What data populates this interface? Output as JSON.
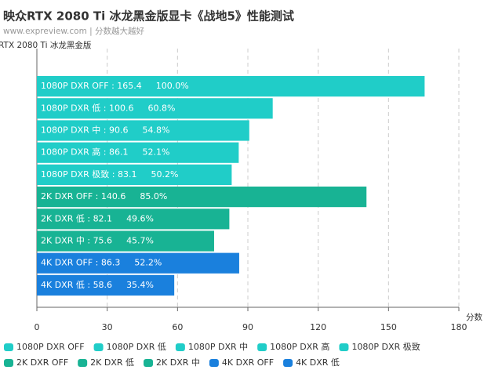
{
  "chart_data": {
    "type": "bar",
    "orientation": "horizontal",
    "title": "映众RTX 2080 Ti 冰龙黑金版显卡《战地5》性能测试",
    "subtitle": "www.expreview.com | 分数越大越好",
    "series_name": "RTX 2080 Ti 冰龙黑金版",
    "x_label": "分数",
    "label_separator": " : ",
    "categories": [
      "1080P DXR OFF",
      "1080P DXR 低",
      "1080P DXR 中",
      "1080P DXR 高",
      "1080P DXR 极致",
      "2K DXR OFF",
      "2K DXR 低",
      "2K DXR 中",
      "4K DXR OFF",
      "4K DXR 低"
    ],
    "values": [
      165.4,
      100.6,
      90.6,
      86.1,
      83.1,
      140.6,
      82.1,
      75.6,
      86.3,
      58.6
    ],
    "percent_labels": [
      "100.0%",
      "60.8%",
      "54.8%",
      "52.1%",
      "50.2%",
      "85.0%",
      "49.6%",
      "45.7%",
      "52.2%",
      "35.4%"
    ],
    "colors": [
      "#20cdc8",
      "#20cdc8",
      "#20cdc8",
      "#20cdc8",
      "#20cdc8",
      "#18b394",
      "#18b394",
      "#18b394",
      "#1a80dd",
      "#1a80dd"
    ],
    "xlim": [
      0,
      180
    ],
    "xticks": [
      0,
      30,
      60,
      90,
      120,
      150,
      180
    ],
    "grid": true
  }
}
